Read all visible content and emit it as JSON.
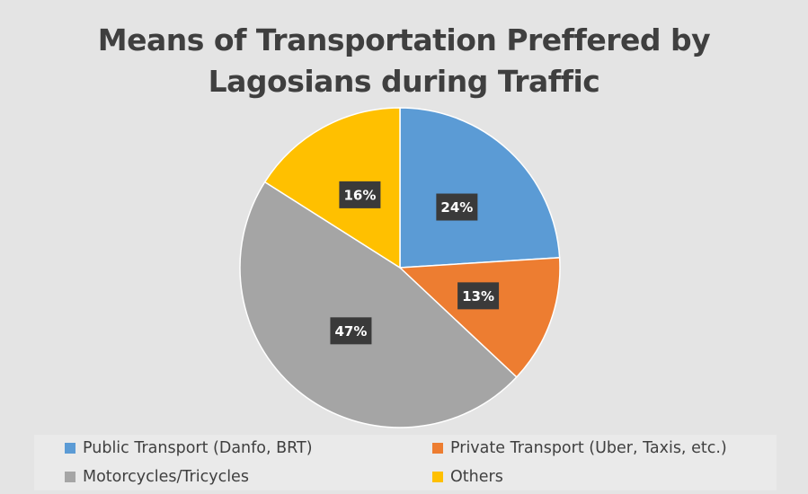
{
  "chart_data": {
    "type": "pie",
    "title_lines": [
      "Means of Transportation Preffered by",
      "Lagosians during Traffic"
    ],
    "categories": [
      "Public Transport (Danfo, BRT)",
      "Private Transport (Uber, Taxis, etc.)",
      "Motorcycles/Tricycles",
      "Others"
    ],
    "values": [
      24,
      13,
      47,
      16
    ],
    "labels": [
      "24%",
      "13%",
      "47%",
      "16%"
    ],
    "colors": [
      "#5b9bd5",
      "#ed7d31",
      "#a5a5a5",
      "#ffc000"
    ],
    "start_angle_deg": 0,
    "direction": "clockwise",
    "legend_position": "bottom",
    "label_style": "dark-box"
  }
}
